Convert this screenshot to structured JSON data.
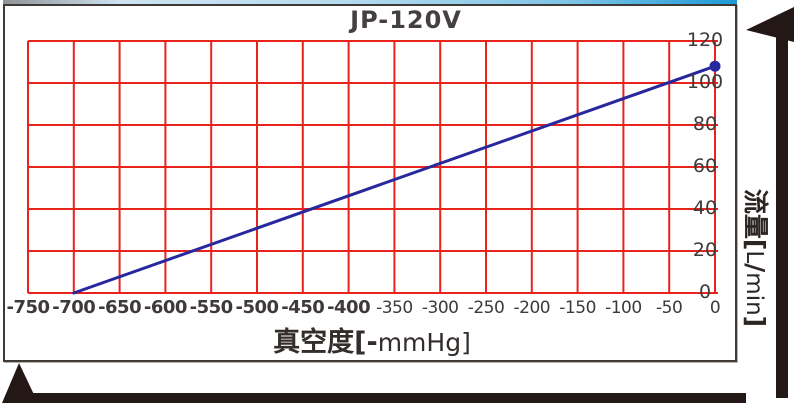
{
  "title_block": {
    "title": "JP-120V"
  },
  "chart_data": {
    "type": "line",
    "title": "JP-120V",
    "xlabel": "真空度[-mmHg]",
    "ylabel": "流量[L/min]",
    "xlim": [
      -750,
      0
    ],
    "ylim": [
      0,
      120
    ],
    "x_tick_step": 50,
    "y_tick_step": 20,
    "grid": true,
    "legend": false,
    "x_ticks": [
      {
        "value": -750,
        "label": "-750",
        "bold": true
      },
      {
        "value": -700,
        "label": "-700",
        "bold": true
      },
      {
        "value": -650,
        "label": "-650",
        "bold": true
      },
      {
        "value": -600,
        "label": "-600",
        "bold": true
      },
      {
        "value": -550,
        "label": "-550",
        "bold": true
      },
      {
        "value": -500,
        "label": "-500",
        "bold": true
      },
      {
        "value": -450,
        "label": "-450",
        "bold": true
      },
      {
        "value": -400,
        "label": "-400",
        "bold": true
      },
      {
        "value": -350,
        "label": "-350",
        "bold": false
      },
      {
        "value": -300,
        "label": "-300",
        "bold": false
      },
      {
        "value": -250,
        "label": "-250",
        "bold": false
      },
      {
        "value": -200,
        "label": "-200",
        "bold": false
      },
      {
        "value": -150,
        "label": "-150",
        "bold": false
      },
      {
        "value": -100,
        "label": "-100",
        "bold": false
      },
      {
        "value": -50,
        "label": "-50",
        "bold": false
      },
      {
        "value": 0,
        "label": "0",
        "bold": false
      }
    ],
    "y_ticks": [
      {
        "value": 0,
        "label": "0"
      },
      {
        "value": 20,
        "label": "20"
      },
      {
        "value": 40,
        "label": "40"
      },
      {
        "value": 60,
        "label": "60"
      },
      {
        "value": 80,
        "label": "80"
      },
      {
        "value": 100,
        "label": "100"
      },
      {
        "value": 120,
        "label": "120"
      }
    ],
    "series": [
      {
        "name": "JP-120V",
        "color": "#28289e",
        "points": [
          [
            -700,
            0
          ],
          [
            0,
            108
          ]
        ],
        "end_marker": {
          "x": 0,
          "y": 108
        }
      }
    ]
  },
  "axis_display": {
    "x_title_bold": "真空度[-",
    "x_title_regular": "mmHg]",
    "y_title_parts": [
      {
        "text": "流量[",
        "bold": true
      },
      {
        "text": "L",
        "bold": false
      },
      {
        "text": "/",
        "bold": true
      },
      {
        "text": "min",
        "bold": false
      },
      {
        "text": "]",
        "bold": true
      }
    ]
  },
  "colors": {
    "grid": "#e8231d",
    "series": "#28289e",
    "text": "#3e3a39",
    "frame": "#403a37",
    "arrow": "#231815"
  }
}
